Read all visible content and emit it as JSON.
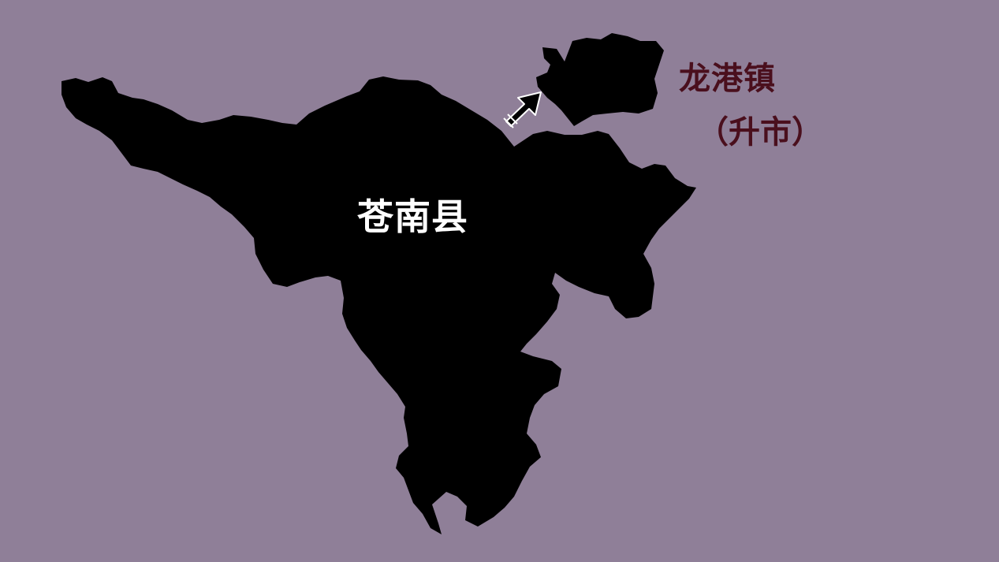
{
  "map": {
    "background_color": "#8f7f98",
    "region_color": "#000000",
    "regions": [
      {
        "id": "cangnan",
        "label": "苍南县",
        "label_color": "#ffffff"
      },
      {
        "id": "longgang",
        "label": "龙港镇",
        "label_color": "#4a0f1d"
      }
    ],
    "status_note": "（升市）",
    "arrow_icon": "arrow-northeast-icon"
  }
}
